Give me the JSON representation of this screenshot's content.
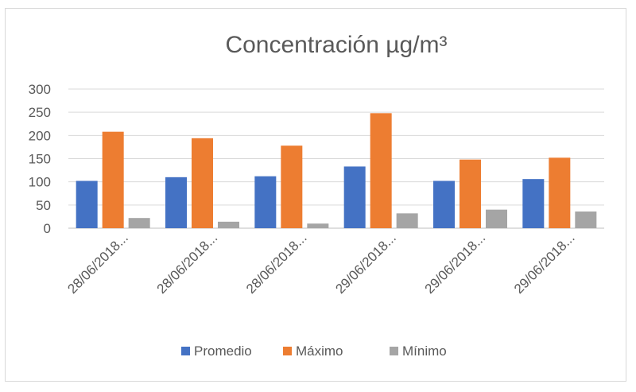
{
  "chart_data": {
    "type": "bar",
    "title": "Concentración µg/m³",
    "categories": [
      "28/06/2018...",
      "28/06/2018...",
      "28/06/2018...",
      "29/06/2018...",
      "29/06/2018...",
      "29/06/2018..."
    ],
    "series": [
      {
        "name": "Promedio",
        "color": "#4472c4",
        "values": [
          102,
          110,
          112,
          133,
          102,
          106
        ]
      },
      {
        "name": "Máximo",
        "color": "#ed7d31",
        "values": [
          208,
          194,
          178,
          248,
          148,
          152
        ]
      },
      {
        "name": "Mínimo",
        "color": "#a5a5a5",
        "values": [
          22,
          14,
          10,
          32,
          40,
          36
        ]
      }
    ],
    "yticks": [
      0,
      50,
      100,
      150,
      200,
      250,
      300
    ],
    "ylim": [
      0,
      300
    ],
    "grid": true,
    "legend_position": "bottom"
  }
}
